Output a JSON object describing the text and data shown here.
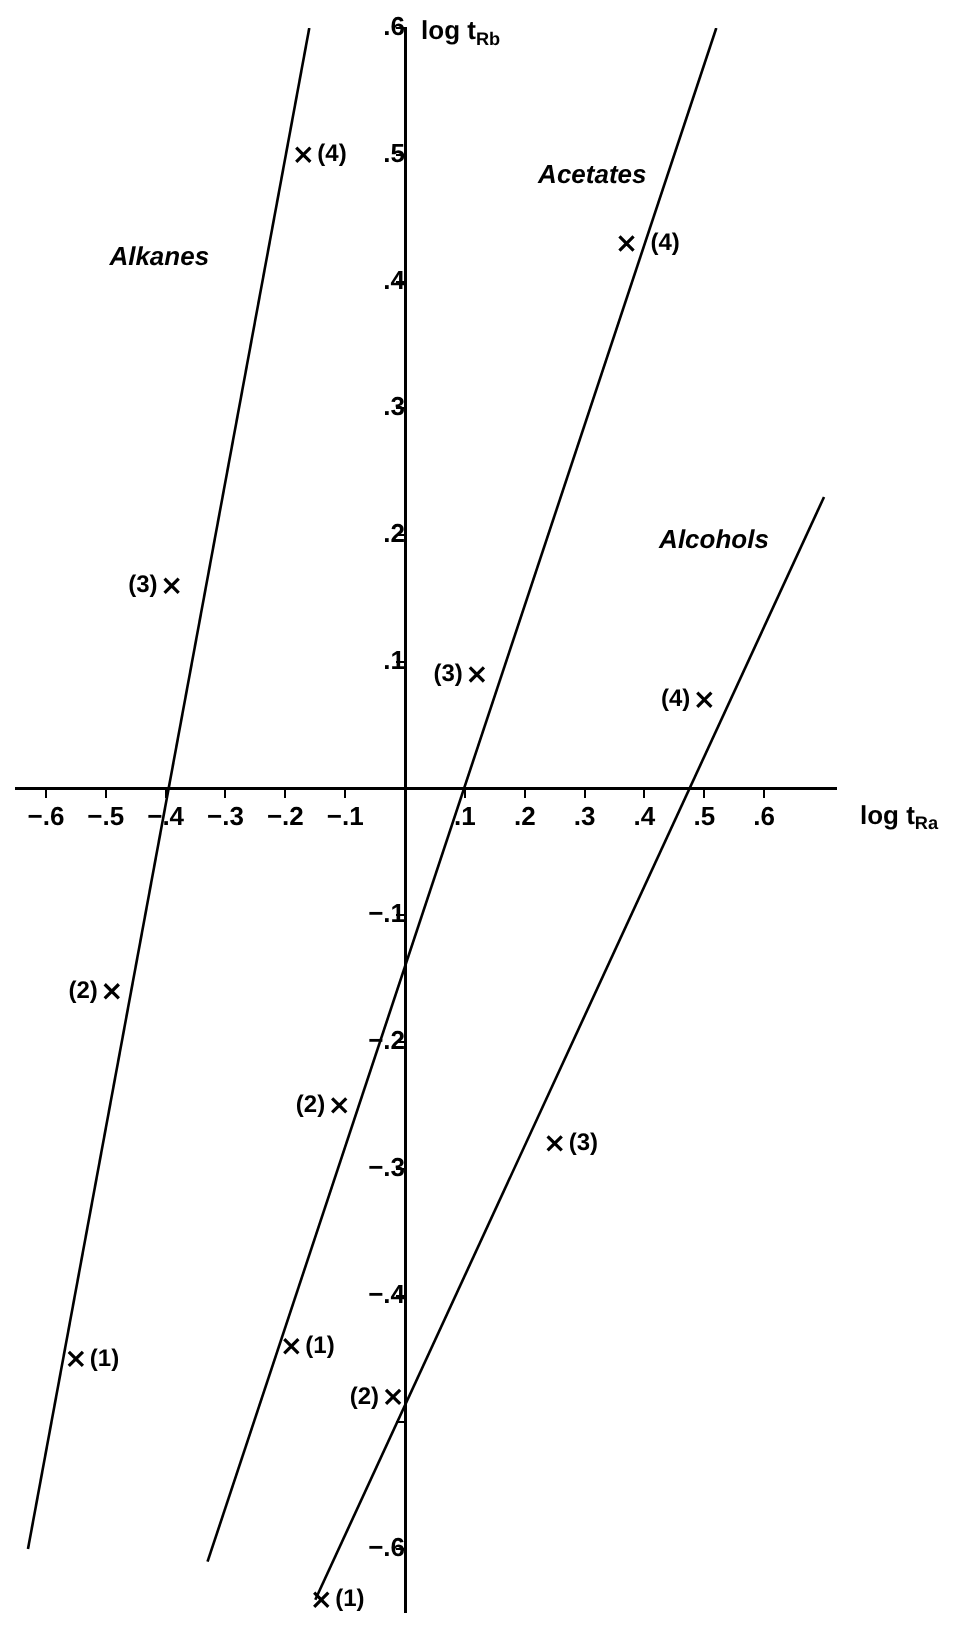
{
  "chart_data": {
    "type": "scatter",
    "xlabel": "log t$_{Ra}$",
    "ylabel": "log t$_{Rb}$",
    "marker": "cross",
    "xlim": [
      -0.65,
      0.72
    ],
    "ylim": [
      -0.65,
      0.6
    ],
    "xticks": [
      {
        "value": -0.6,
        "label": "−.6"
      },
      {
        "value": -0.5,
        "label": "−.5"
      },
      {
        "value": -0.4,
        "label": "−.4"
      },
      {
        "value": -0.3,
        "label": "−.3"
      },
      {
        "value": -0.2,
        "label": "−.2"
      },
      {
        "value": -0.1,
        "label": "−.1"
      },
      {
        "value": 0.1,
        "label": ".1"
      },
      {
        "value": 0.2,
        "label": ".2"
      },
      {
        "value": 0.3,
        "label": ".3"
      },
      {
        "value": 0.4,
        "label": ".4"
      },
      {
        "value": 0.5,
        "label": ".5"
      },
      {
        "value": 0.6,
        "label": ".6"
      }
    ],
    "yticks": [
      {
        "value": -0.6,
        "label": "−.6"
      },
      {
        "value": -0.5,
        "label": null
      },
      {
        "value": -0.4,
        "label": "−.4"
      },
      {
        "value": -0.3,
        "label": "−.3"
      },
      {
        "value": -0.2,
        "label": "−.2"
      },
      {
        "value": -0.1,
        "label": "−.1"
      },
      {
        "value": 0.1,
        "label": ".1"
      },
      {
        "value": 0.2,
        "label": ".2"
      },
      {
        "value": 0.3,
        "label": ".3"
      },
      {
        "value": 0.4,
        "label": ".4"
      },
      {
        "value": 0.5,
        "label": ".5"
      },
      {
        "value": 0.6,
        "label": ".6"
      }
    ],
    "series": [
      {
        "type": "line",
        "name": "Alkanes",
        "color": "#000000",
        "marker": "none",
        "x": [
          -0.63,
          -0.16
        ],
        "values": [
          -0.6,
          0.6
        ]
      },
      {
        "type": "line",
        "name": "Acetates",
        "color": "#000000",
        "marker": "none",
        "x": [
          -0.33,
          0.52
        ],
        "values": [
          -0.61,
          0.6
        ]
      },
      {
        "type": "line",
        "name": "Alcohols",
        "color": "#000000",
        "marker": "none",
        "x": [
          -0.15,
          0.7
        ],
        "values": [
          -0.64,
          0.23
        ]
      },
      {
        "color": "#000000",
        "x": [
          -0.17,
          -0.39,
          -0.49,
          -0.55
        ],
        "values": [
          0.5,
          0.16,
          -0.16,
          -0.45
        ]
      },
      {
        "color": "#000000",
        "x": [
          0.37,
          0.12,
          -0.11,
          -0.19
        ],
        "values": [
          0.43,
          0.09,
          -0.25,
          -0.44
        ]
      },
      {
        "color": "#000000",
        "x": [
          0.5,
          0.25,
          -0.02,
          -0.14
        ],
        "values": [
          0.07,
          -0.28,
          -0.48,
          -0.64
        ]
      }
    ],
    "annotations": [
      {
        "text": "(4)",
        "x": -0.17,
        "y": 0.5
      },
      {
        "text": "(3)",
        "x": -0.39,
        "y": 0.16
      },
      {
        "text": "(2)",
        "x": -0.49,
        "y": -0.16
      },
      {
        "text": "(1)",
        "x": -0.55,
        "y": -0.45
      },
      {
        "text": "(4)",
        "x": 0.37,
        "y": 0.43
      },
      {
        "text": "(3)",
        "x": 0.12,
        "y": 0.09
      },
      {
        "text": "(2)",
        "x": -0.11,
        "y": -0.25
      },
      {
        "text": "(1)",
        "x": -0.19,
        "y": -0.44
      },
      {
        "text": "(4)",
        "x": 0.5,
        "y": 0.07
      },
      {
        "text": "(3)",
        "x": 0.25,
        "y": -0.28
      },
      {
        "text": "(2)",
        "x": -0.02,
        "y": -0.48
      },
      {
        "text": "(1)",
        "x": -0.14,
        "y": -0.64
      }
    ]
  }
}
